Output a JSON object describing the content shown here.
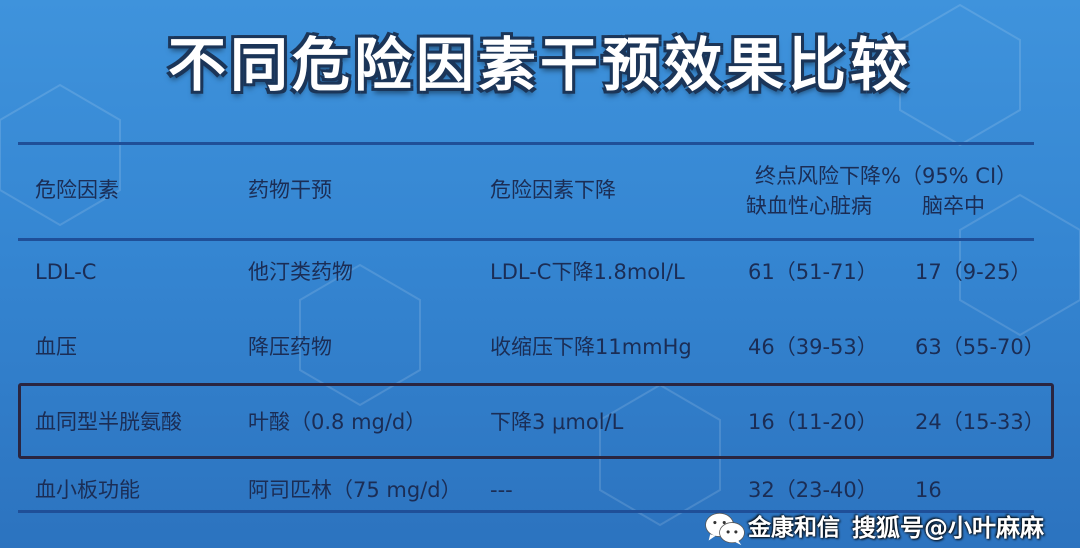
{
  "title": "不同危险因素干预效果比较",
  "table": {
    "headers": [
      "危险因素",
      "药物干预",
      "危险因素下降"
    ],
    "endpoint_header": "终点风险下降%（95% CI）",
    "endpoint_subheaders": [
      "缺血性心脏病",
      "脑卒中"
    ],
    "rows": [
      {
        "factor": "LDL-C",
        "drug": "他汀类药物",
        "reduction": "LDL-C下降1.8mol/L",
        "ihd": "61（51-71）",
        "stroke": "17（9-25）"
      },
      {
        "factor": "血压",
        "drug": "降压药物",
        "reduction": "收缩压下降11mmHg",
        "ihd": "46（39-53）",
        "stroke": "63（55-70）"
      },
      {
        "factor": "血同型半胱氨酸",
        "drug": "叶酸（0.8 mg/d）",
        "reduction": "下降3 μmol/L",
        "ihd": "16（11-20）",
        "stroke": "24（15-33）"
      },
      {
        "factor": "血小板功能",
        "drug": "阿司匹林（75 mg/d）",
        "reduction": "---",
        "ihd": "32（23-40）",
        "stroke": "16"
      }
    ],
    "highlighted_row": 2
  },
  "watermark": {
    "line1": "金康和信",
    "line2": "搜狐号@小叶麻麻",
    "icon": "wechat-icon"
  }
}
